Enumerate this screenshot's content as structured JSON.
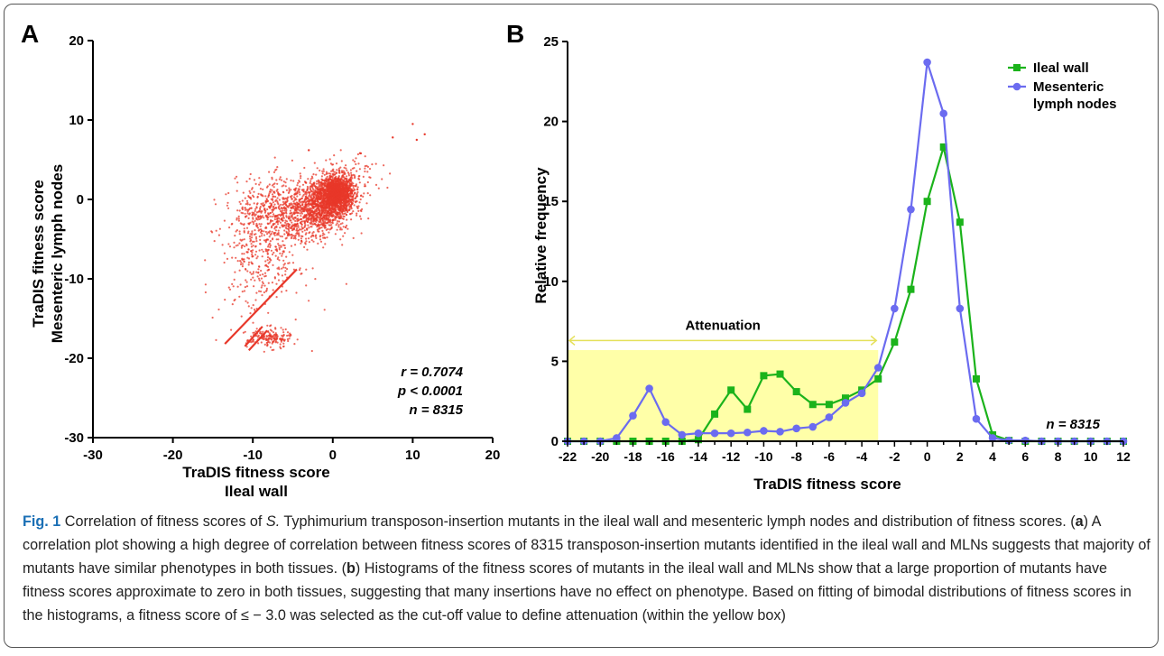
{
  "figure": {
    "panel_a_label": "A",
    "panel_b_label": "B",
    "caption": {
      "fig_label": "Fig. 1",
      "text_1": " Correlation of fitness scores of ",
      "species": "S.",
      "text_2": " Typhimurium transposon-insertion mutants in the ileal wall and mesenteric lymph nodes and distribution of fitness scores. (",
      "a": "a",
      "text_3": ") A correlation plot showing a high degree of correlation between fitness scores of 8315 transposon-insertion mutants identified in the ileal wall and MLNs suggests that majority of mutants have similar phenotypes in both tissues. (",
      "b": "b",
      "text_4": ") Histograms of the fitness scores of mutants in the ileal wall and MLNs show that a large proportion of mutants have fitness scores approximate to zero in both tissues, suggesting that many insertions have no effect on phenotype. Based on fitting of bimodal distributions of fitness scores in the histograms, a fitness score of ≤ − 3.0 was selected as the cut-off value to define attenuation (within the yellow box)"
    }
  },
  "chart_data": [
    {
      "type": "scatter",
      "xlabel_line1": "TraDIS fitness score",
      "xlabel_line2": "Ileal wall",
      "ylabel_line1": "TraDIS fitness score",
      "ylabel_line2": "Mesenteric lymph nodes",
      "xlim": [
        -30,
        20
      ],
      "ylim": [
        -30,
        20
      ],
      "x_ticks": [
        "-30",
        "-20",
        "-10",
        "0",
        "10",
        "20"
      ],
      "y_ticks": [
        "-30",
        "-20",
        "-10",
        "0",
        "10",
        "20"
      ],
      "point_color": "#e8382a",
      "stats": {
        "r": "r = 0.7074",
        "p": "p < 0.0001",
        "n": "n = 8315"
      },
      "clusters": [
        {
          "x_mean": 0.5,
          "x_sd": 1.1,
          "y_mean": 0.8,
          "y_sd": 1.1,
          "count": 1400
        },
        {
          "x_mean": -1.5,
          "x_sd": 1.8,
          "y_mean": -0.8,
          "y_sd": 1.6,
          "count": 900
        },
        {
          "x_mean": -6,
          "x_sd": 3,
          "y_mean": -2,
          "y_sd": 2.2,
          "count": 700
        },
        {
          "x_mean": -9,
          "x_sd": 2.5,
          "y_mean": -7,
          "y_sd": 4,
          "count": 350
        },
        {
          "x_mean": -8,
          "x_sd": 1.4,
          "y_mean": -17.5,
          "y_sd": 0.6,
          "count": 160
        },
        {
          "x_mean": 2,
          "x_sd": 2,
          "y_mean": 2.5,
          "y_sd": 1.5,
          "count": 120
        }
      ],
      "diagonal_bands": [
        {
          "x_start": -13.5,
          "x_end": -4.5,
          "y_start": -18.2,
          "y_end": -8.8
        },
        {
          "x_start": -11,
          "x_end": -8.8,
          "y_start": -18.5,
          "y_end": -16
        },
        {
          "x_start": -10.5,
          "x_end": -8.2,
          "y_start": -19,
          "y_end": -16.5
        }
      ],
      "outliers": [
        [
          10,
          9.5
        ],
        [
          11.5,
          8.2
        ],
        [
          7.5,
          7.8
        ],
        [
          10.5,
          7.5
        ],
        [
          -3,
          6.2
        ],
        [
          3.5,
          5.8
        ]
      ]
    },
    {
      "type": "line",
      "xlabel": "TraDIS fitness score",
      "ylabel": "Relative frequency",
      "xlim": [
        -22,
        12
      ],
      "ylim": [
        0,
        25
      ],
      "x_ticks": [
        "-22",
        "-20",
        "-18",
        "-16",
        "-14",
        "-12",
        "-10",
        "-8",
        "-6",
        "-4",
        "-2",
        "0",
        "2",
        "4",
        "6",
        "8",
        "10",
        "12"
      ],
      "y_ticks": [
        "0",
        "5",
        "10",
        "15",
        "20",
        "25"
      ],
      "attenuation_label": "Attenuation",
      "attenuation_range": [
        -22,
        -3
      ],
      "attenuation_box_top": 5.7,
      "attenuation_arrow_y": 6.3,
      "attenuation_color": "#ffffa8",
      "n_label": "n = 8315",
      "x": [
        -22,
        -21,
        -20,
        -19,
        -18,
        -17,
        -16,
        -15,
        -14,
        -13,
        -12,
        -11,
        -10,
        -9,
        -8,
        -7,
        -6,
        -5,
        -4,
        -3,
        -2,
        -1,
        0,
        1,
        2,
        3,
        4,
        5,
        6,
        7,
        8,
        9,
        10,
        11,
        12
      ],
      "series": [
        {
          "name": "Ileal wall",
          "color": "#1bb31b",
          "marker": "square",
          "values": [
            0,
            0,
            0,
            0,
            0,
            0,
            0,
            0,
            0.1,
            1.7,
            3.2,
            2.0,
            4.1,
            4.2,
            3.1,
            2.3,
            2.3,
            2.7,
            3.2,
            3.9,
            6.2,
            9.5,
            15.0,
            18.4,
            13.7,
            3.9,
            0.4,
            0.05,
            0,
            0,
            0,
            0,
            0,
            0,
            0
          ]
        },
        {
          "name": "Mesenteric lymph nodes",
          "color": "#6b6bf0",
          "marker": "circle",
          "values": [
            0,
            0,
            0,
            0.2,
            1.6,
            3.3,
            1.2,
            0.4,
            0.5,
            0.5,
            0.5,
            0.55,
            0.65,
            0.6,
            0.8,
            0.9,
            1.5,
            2.4,
            3.0,
            4.6,
            8.3,
            14.5,
            23.7,
            20.5,
            8.3,
            1.4,
            0.2,
            0.05,
            0.05,
            0,
            0,
            0,
            0,
            0,
            0
          ]
        }
      ]
    }
  ]
}
